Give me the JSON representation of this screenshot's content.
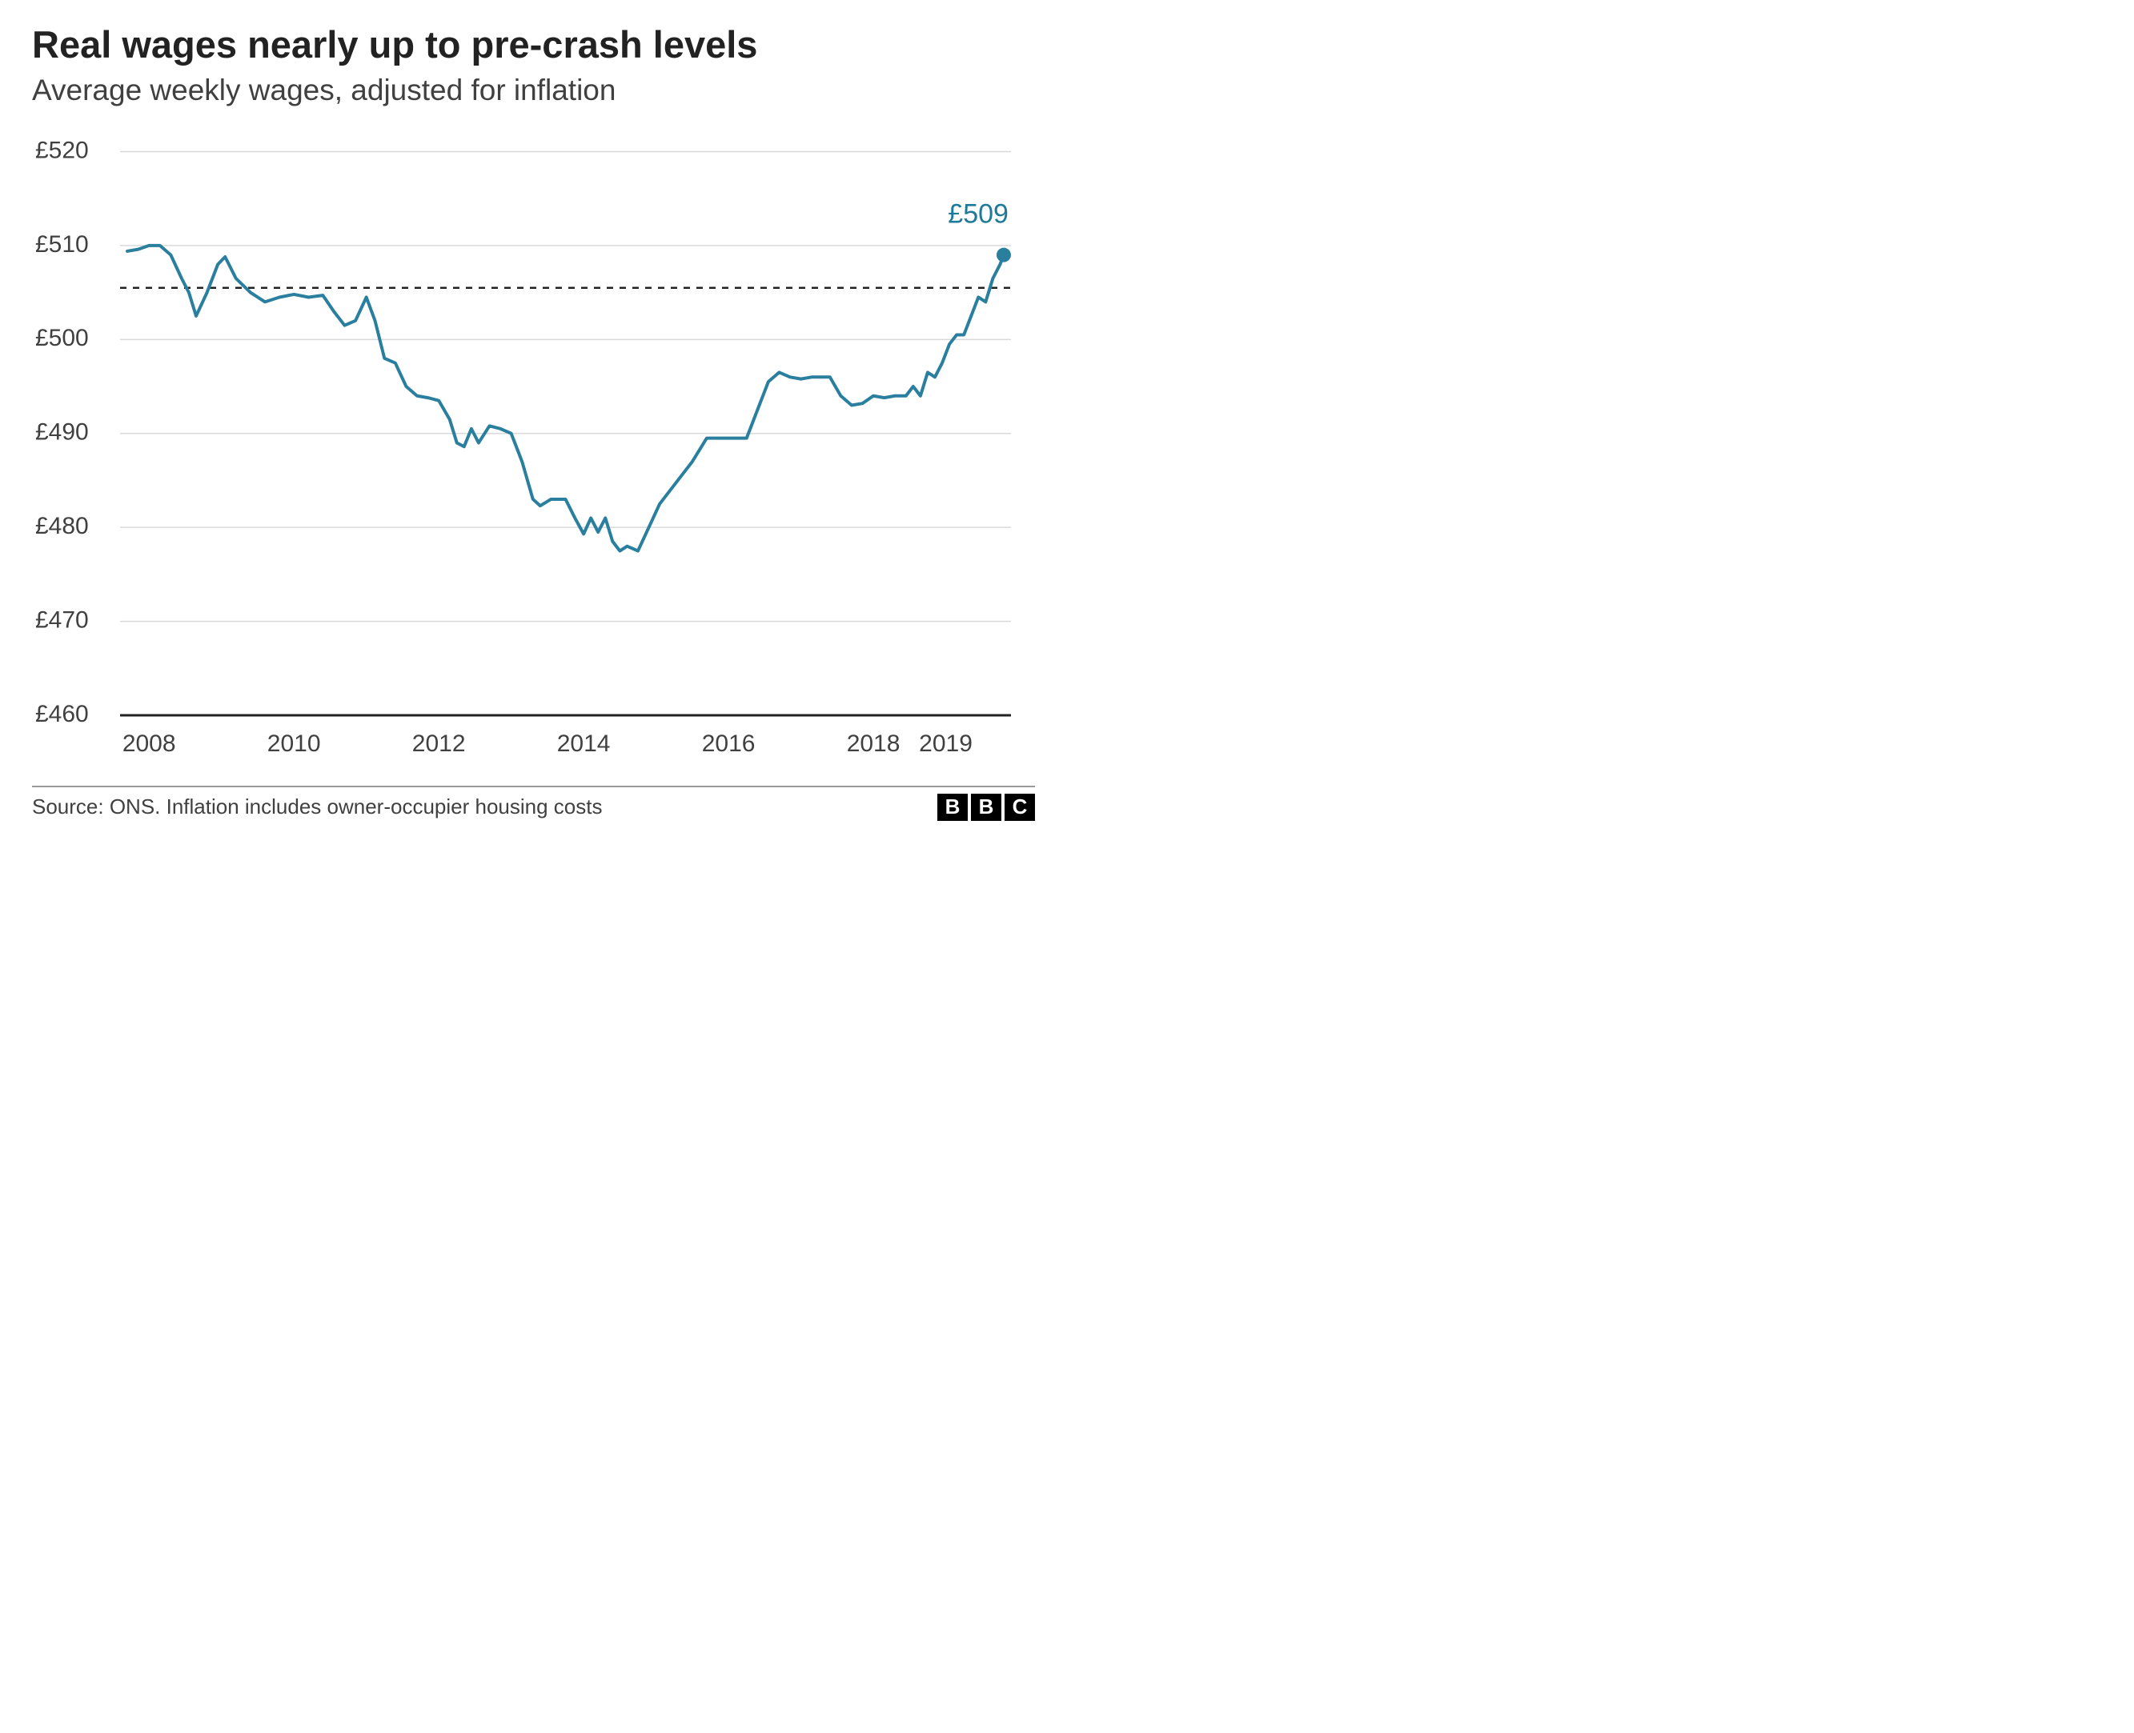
{
  "chart": {
    "type": "line",
    "title": "Real wages nearly up to pre-crash levels",
    "subtitle": "Average weekly wages, adjusted for inflation",
    "title_fontsize": 47,
    "subtitle_fontsize": 37,
    "title_color": "#222222",
    "subtitle_color": "#404040",
    "background_color": "#ffffff",
    "line_color": "#2a7f9e",
    "line_width": 4,
    "end_point_color": "#2a7f9e",
    "end_point_radius": 9,
    "end_label": "£509",
    "end_label_color": "#1f7a99",
    "end_label_fontsize": 34,
    "grid_color": "#d9d9d9",
    "grid_width": 1.5,
    "axis_color": "#222222",
    "axis_width": 3,
    "reference_line_value": 505.5,
    "reference_line_color": "#222222",
    "reference_line_dash": "8,8",
    "y_axis": {
      "min": 460,
      "max": 522,
      "ticks": [
        460,
        470,
        480,
        490,
        500,
        510,
        520
      ],
      "tick_labels": [
        "£460",
        "£470",
        "£480",
        "£490",
        "£500",
        "£510",
        "£520"
      ],
      "label_fontsize": 30,
      "label_color": "#404040"
    },
    "x_axis": {
      "min": 2007.6,
      "max": 2019.9,
      "ticks": [
        2008,
        2010,
        2012,
        2014,
        2016,
        2018,
        2019
      ],
      "tick_labels": [
        "2008",
        "2010",
        "2012",
        "2014",
        "2016",
        "2018",
        "2019"
      ],
      "label_fontsize": 30,
      "label_color": "#404040"
    },
    "series": [
      {
        "x": 2007.7,
        "y": 509.4
      },
      {
        "x": 2007.85,
        "y": 509.6
      },
      {
        "x": 2008.0,
        "y": 510.0
      },
      {
        "x": 2008.15,
        "y": 510.0
      },
      {
        "x": 2008.3,
        "y": 509.0
      },
      {
        "x": 2008.45,
        "y": 506.5
      },
      {
        "x": 2008.55,
        "y": 505.0
      },
      {
        "x": 2008.65,
        "y": 502.5
      },
      {
        "x": 2008.8,
        "y": 505.0
      },
      {
        "x": 2008.95,
        "y": 508.0
      },
      {
        "x": 2009.05,
        "y": 508.8
      },
      {
        "x": 2009.2,
        "y": 506.5
      },
      {
        "x": 2009.4,
        "y": 505.0
      },
      {
        "x": 2009.6,
        "y": 504.0
      },
      {
        "x": 2009.8,
        "y": 504.5
      },
      {
        "x": 2010.0,
        "y": 504.8
      },
      {
        "x": 2010.2,
        "y": 504.5
      },
      {
        "x": 2010.4,
        "y": 504.7
      },
      {
        "x": 2010.55,
        "y": 503.0
      },
      {
        "x": 2010.7,
        "y": 501.5
      },
      {
        "x": 2010.85,
        "y": 502.0
      },
      {
        "x": 2011.0,
        "y": 504.5
      },
      {
        "x": 2011.12,
        "y": 502.0
      },
      {
        "x": 2011.25,
        "y": 498.0
      },
      {
        "x": 2011.4,
        "y": 497.5
      },
      {
        "x": 2011.55,
        "y": 495.0
      },
      {
        "x": 2011.7,
        "y": 494.0
      },
      {
        "x": 2011.85,
        "y": 493.8
      },
      {
        "x": 2012.0,
        "y": 493.5
      },
      {
        "x": 2012.15,
        "y": 491.5
      },
      {
        "x": 2012.25,
        "y": 489.0
      },
      {
        "x": 2012.35,
        "y": 488.6
      },
      {
        "x": 2012.45,
        "y": 490.5
      },
      {
        "x": 2012.55,
        "y": 489.0
      },
      {
        "x": 2012.7,
        "y": 490.8
      },
      {
        "x": 2012.85,
        "y": 490.5
      },
      {
        "x": 2013.0,
        "y": 490.0
      },
      {
        "x": 2013.15,
        "y": 487.0
      },
      {
        "x": 2013.3,
        "y": 483.0
      },
      {
        "x": 2013.4,
        "y": 482.3
      },
      {
        "x": 2013.55,
        "y": 483.0
      },
      {
        "x": 2013.75,
        "y": 483.0
      },
      {
        "x": 2013.88,
        "y": 481.0
      },
      {
        "x": 2014.0,
        "y": 479.3
      },
      {
        "x": 2014.1,
        "y": 481.0
      },
      {
        "x": 2014.2,
        "y": 479.5
      },
      {
        "x": 2014.3,
        "y": 481.0
      },
      {
        "x": 2014.4,
        "y": 478.5
      },
      {
        "x": 2014.5,
        "y": 477.5
      },
      {
        "x": 2014.6,
        "y": 478.0
      },
      {
        "x": 2014.75,
        "y": 477.5
      },
      {
        "x": 2014.9,
        "y": 480.0
      },
      {
        "x": 2015.05,
        "y": 482.5
      },
      {
        "x": 2015.2,
        "y": 484.0
      },
      {
        "x": 2015.35,
        "y": 485.5
      },
      {
        "x": 2015.5,
        "y": 487.0
      },
      {
        "x": 2015.7,
        "y": 489.5
      },
      {
        "x": 2015.9,
        "y": 489.5
      },
      {
        "x": 2016.25,
        "y": 489.5
      },
      {
        "x": 2016.4,
        "y": 492.5
      },
      {
        "x": 2016.55,
        "y": 495.5
      },
      {
        "x": 2016.7,
        "y": 496.5
      },
      {
        "x": 2016.85,
        "y": 496.0
      },
      {
        "x": 2017.0,
        "y": 495.8
      },
      {
        "x": 2017.15,
        "y": 496.0
      },
      {
        "x": 2017.4,
        "y": 496.0
      },
      {
        "x": 2017.55,
        "y": 494.0
      },
      {
        "x": 2017.7,
        "y": 493.0
      },
      {
        "x": 2017.85,
        "y": 493.2
      },
      {
        "x": 2018.0,
        "y": 494.0
      },
      {
        "x": 2018.15,
        "y": 493.8
      },
      {
        "x": 2018.3,
        "y": 494.0
      },
      {
        "x": 2018.45,
        "y": 494.0
      },
      {
        "x": 2018.55,
        "y": 495.0
      },
      {
        "x": 2018.65,
        "y": 494.0
      },
      {
        "x": 2018.75,
        "y": 496.5
      },
      {
        "x": 2018.85,
        "y": 496.0
      },
      {
        "x": 2018.95,
        "y": 497.5
      },
      {
        "x": 2019.05,
        "y": 499.5
      },
      {
        "x": 2019.15,
        "y": 500.5
      },
      {
        "x": 2019.25,
        "y": 500.5
      },
      {
        "x": 2019.35,
        "y": 502.5
      },
      {
        "x": 2019.45,
        "y": 504.5
      },
      {
        "x": 2019.55,
        "y": 504.0
      },
      {
        "x": 2019.65,
        "y": 506.5
      },
      {
        "x": 2019.75,
        "y": 508.0
      },
      {
        "x": 2019.8,
        "y": 509.0
      }
    ]
  },
  "footer": {
    "source_text": "Source: ONS. Inflation includes owner-occupier housing costs",
    "source_fontsize": 26,
    "source_color": "#404040",
    "divider_color": "#999999",
    "logo_letters": [
      "B",
      "B",
      "C"
    ],
    "logo_bg": "#000000",
    "logo_fg": "#ffffff"
  }
}
